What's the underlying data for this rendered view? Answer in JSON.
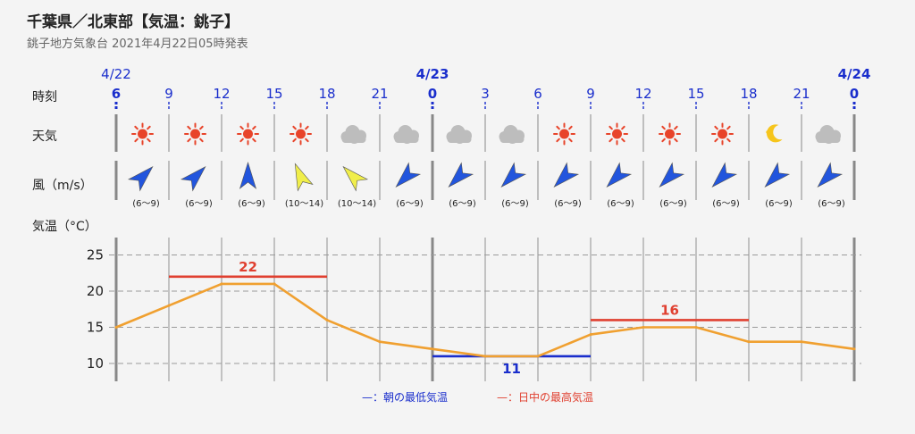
{
  "header": {
    "title": "千葉県／北東部【気温：銚子】",
    "subtitle": "銚子地方気象台 2021年4月22日05時発表"
  },
  "rows": {
    "time": "時刻",
    "weather": "天気",
    "wind": "風（m/s）",
    "temp": "気温（°C）"
  },
  "dates": [
    {
      "label": "4/22",
      "at_slot": 0
    },
    {
      "label": "4/23",
      "at_slot": 6
    },
    {
      "label": "4/24",
      "at_slot": 14
    }
  ],
  "hours": [
    "6",
    "9",
    "12",
    "15",
    "18",
    "21",
    "0",
    "3",
    "6",
    "9",
    "12",
    "15",
    "18",
    "21",
    "0"
  ],
  "weather_icons": [
    "sun-icon",
    "sun-icon",
    "sun-icon",
    "sun-icon",
    "cloud-icon",
    "cloud-icon",
    "cloud-icon",
    "cloud-icon",
    "sun-icon",
    "sun-icon",
    "sun-icon",
    "sun-icon",
    "moon-icon",
    "cloud-icon"
  ],
  "wind": [
    {
      "dir": "SW",
      "range": "(6〜9)",
      "color": "#2255dd"
    },
    {
      "dir": "SW",
      "range": "(6〜9)",
      "color": "#2255dd"
    },
    {
      "dir": "S",
      "range": "(6〜9)",
      "color": "#2255dd"
    },
    {
      "dir": "SSE",
      "range": "(10〜14)",
      "color": "#f0ee4a"
    },
    {
      "dir": "SE",
      "range": "(10〜14)",
      "color": "#f0ee4a"
    },
    {
      "dir": "NE",
      "range": "(6〜9)",
      "color": "#2255dd"
    },
    {
      "dir": "NE",
      "range": "(6〜9)",
      "color": "#2255dd"
    },
    {
      "dir": "NE",
      "range": "(6〜9)",
      "color": "#2255dd"
    },
    {
      "dir": "NE",
      "range": "(6〜9)",
      "color": "#2255dd"
    },
    {
      "dir": "NE",
      "range": "(6〜9)",
      "color": "#2255dd"
    },
    {
      "dir": "NE",
      "range": "(6〜9)",
      "color": "#2255dd"
    },
    {
      "dir": "NE",
      "range": "(6〜9)",
      "color": "#2255dd"
    },
    {
      "dir": "NE",
      "range": "(6〜9)",
      "color": "#2255dd"
    },
    {
      "dir": "NE",
      "range": "(6〜9)",
      "color": "#2255dd"
    }
  ],
  "chart_data": {
    "type": "line",
    "x": [
      "4/22 6",
      "4/22 9",
      "4/22 12",
      "4/22 15",
      "4/22 18",
      "4/22 21",
      "4/23 0",
      "4/23 3",
      "4/23 6",
      "4/23 9",
      "4/23 12",
      "4/23 15",
      "4/23 18",
      "4/23 21",
      "4/24 0"
    ],
    "values": [
      15,
      18,
      21,
      21,
      16,
      13,
      12,
      11,
      11,
      14,
      15,
      15,
      13,
      13,
      12
    ],
    "line_color": "#f0a030",
    "yticks": [
      10,
      15,
      20,
      25
    ],
    "ylim": [
      8,
      28
    ],
    "ylabel": "気温（°C）",
    "grid": true,
    "bands": [
      {
        "kind": "max",
        "value": 22,
        "label": "22",
        "from": "4/22 9",
        "to": "4/22 18",
        "color": "#e04030"
      },
      {
        "kind": "min",
        "value": 11,
        "label": "11",
        "from": "4/23 0",
        "to": "4/23 9",
        "color": "#1a2ecc"
      },
      {
        "kind": "max",
        "value": 16,
        "label": "16",
        "from": "4/23 9",
        "to": "4/23 18",
        "color": "#e04030"
      }
    ]
  },
  "legend": [
    {
      "text": "—：朝の最低気温",
      "color": "#1a2ecc"
    },
    {
      "text": "—：日中の最高気温",
      "color": "#e04030"
    }
  ],
  "colors": {
    "blue_text": "#1a2ecc",
    "red": "#e04030",
    "sun": "#e8442a",
    "cloud": "#bdbdbd",
    "moon": "#f6c51c",
    "grid": "#9a9a9a",
    "day_divider": "#888888"
  }
}
